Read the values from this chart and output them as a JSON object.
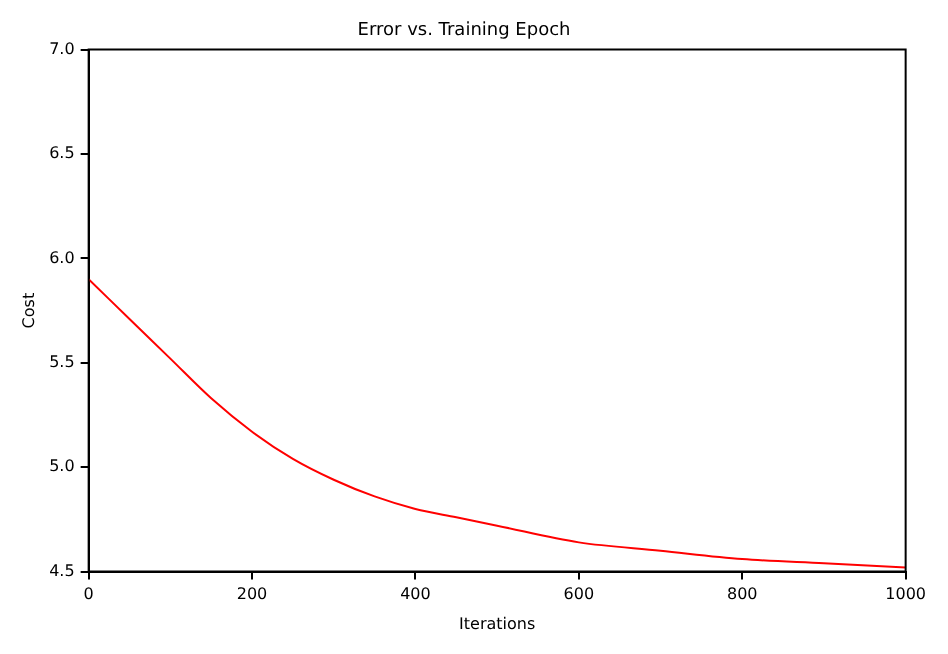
{
  "chart_data": {
    "type": "line",
    "title": "Error vs. Training Epoch",
    "xlabel": "Iterations",
    "ylabel": "Cost",
    "x": [
      0,
      50,
      100,
      150,
      200,
      250,
      300,
      350,
      400,
      450,
      500,
      600,
      700,
      800,
      900,
      1000
    ],
    "series": [
      {
        "color": "#ff0000",
        "values": [
          5.9,
          5.71,
          5.52,
          5.33,
          5.17,
          5.04,
          4.94,
          4.86,
          4.8,
          4.76,
          4.72,
          4.64,
          4.6,
          4.56,
          4.54,
          4.52
        ]
      }
    ],
    "xlim": [
      0,
      1000
    ],
    "xticks": [
      0,
      200,
      400,
      600,
      800,
      1000
    ],
    "ylim": [
      4.5,
      7.0
    ],
    "yticks": [
      {
        "value": 4.5,
        "label": "4.5"
      },
      {
        "value": 5,
        "label": "5.0"
      },
      {
        "value": 5.5,
        "label": "5.5"
      },
      {
        "value": 6,
        "label": "6.0"
      },
      {
        "value": 6.5,
        "label": "6.5"
      },
      {
        "value": 7,
        "label": "7.0"
      }
    ],
    "grid": false,
    "legend": false
  }
}
